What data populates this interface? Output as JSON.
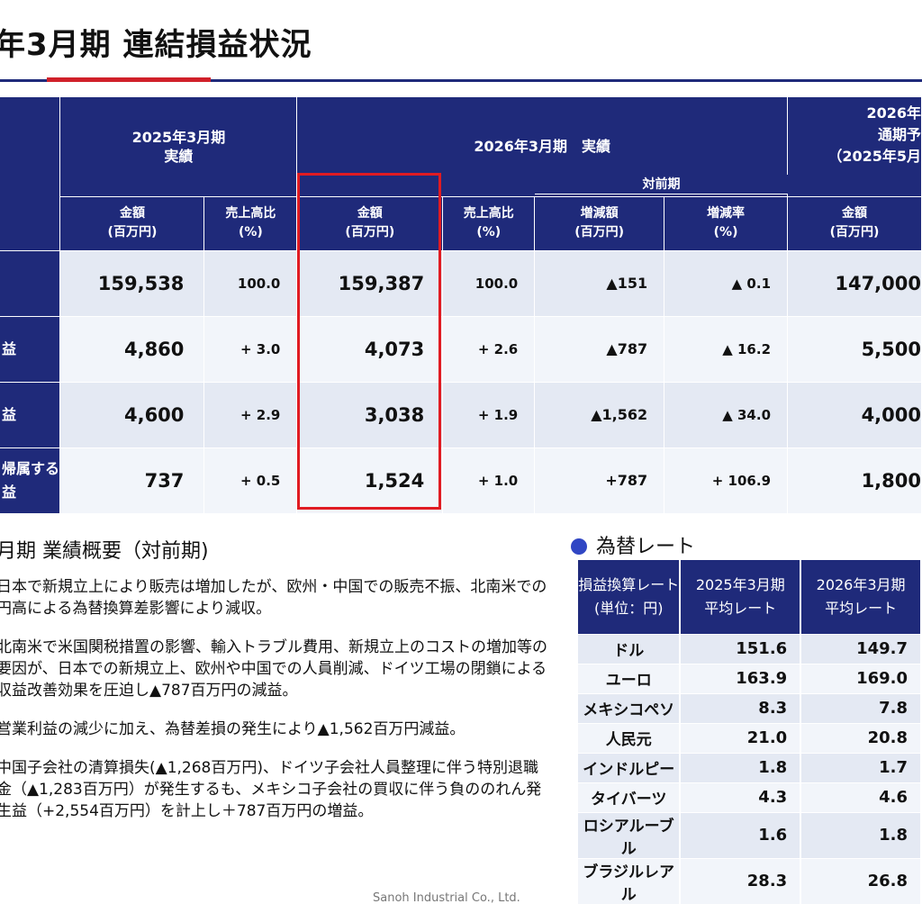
{
  "page": {
    "title": "年3月期 連結損益状況",
    "footer": "Sanoh Industrial Co., Ltd."
  },
  "colors": {
    "header_navy": "#1f2a7a",
    "accent_red": "#e01b22",
    "row_light": "#f2f5fa",
    "row_mid": "#e4e9f3"
  },
  "main_table": {
    "group_2025": [
      "2025年3月期",
      "実績"
    ],
    "group_2026": "2026年3月期　実績",
    "group_forecast": [
      "2026年",
      "通期予",
      "（2025年5月"
    ],
    "yoy_label": "対前期",
    "col_amount": [
      "金額",
      "(百万円)"
    ],
    "col_ratio": [
      "売上高比",
      "(%)"
    ],
    "col_change": [
      "増減額",
      "(百万円)"
    ],
    "col_rate": [
      "増減率",
      "(%)"
    ],
    "rows": [
      {
        "label": "",
        "a2025": "159,538",
        "r2025": "100.0",
        "a2026": "159,387",
        "r2026": "100.0",
        "chg": "▲151",
        "rate": "▲ 0.1",
        "fc": "147,000"
      },
      {
        "label": "益",
        "a2025": "4,860",
        "r2025": "+ 3.0",
        "a2026": "4,073",
        "r2026": "+ 2.6",
        "chg": "▲787",
        "rate": "▲ 16.2",
        "fc": "5,500"
      },
      {
        "label": "益",
        "a2025": "4,600",
        "r2025": "+ 2.9",
        "a2026": "3,038",
        "r2026": "+ 1.9",
        "chg": "▲1,562",
        "rate": "▲ 34.0",
        "fc": "4,000"
      },
      {
        "label": "帰属する",
        "label2": "益",
        "a2025": "737",
        "r2025": "+ 0.5",
        "a2026": "1,524",
        "r2026": "+ 1.0",
        "chg": "+787",
        "rate": "+ 106.9",
        "fc": "1,800"
      }
    ]
  },
  "summary": {
    "title": "月期 業績概要（対前期)",
    "paragraphs": [
      "日本で新規立上により販売は増加したが、欧州・中国での販売不振、北南米での円高による為替換算差影響により減収。",
      "北南米で米国関税措置の影響、輸入トラブル費用、新規立上のコストの増加等の要因が、日本での新規立上、欧州や中国での人員削減、ドイツ工場の閉鎖による収益改善効果を圧迫し▲787百万円の減益。",
      "営業利益の減少に加え、為替差損の発生により▲1,562百万円減益。",
      "中国子会社の清算損失(▲1,268百万円)、ドイツ子会社人員整理に伴う特別退職金（▲1,283百万円）が発生するも、メキシコ子会社の買収に伴う負ののれん発生益（+2,554百万円）を計上し＋787百万円の増益。"
    ]
  },
  "fx": {
    "title": "為替レート",
    "head": {
      "c0": [
        "損益換算レート",
        "(単位：円)"
      ],
      "c1": [
        "2025年3月期",
        "平均レート"
      ],
      "c2": [
        "2026年3月期",
        "平均レート"
      ]
    },
    "rows": [
      {
        "name": "ドル",
        "v2025": "151.6",
        "v2026": "149.7"
      },
      {
        "name": "ユーロ",
        "v2025": "163.9",
        "v2026": "169.0"
      },
      {
        "name": "メキシコペソ",
        "v2025": "8.3",
        "v2026": "7.8"
      },
      {
        "name": "人民元",
        "v2025": "21.0",
        "v2026": "20.8"
      },
      {
        "name": "インドルピー",
        "v2025": "1.8",
        "v2026": "1.7"
      },
      {
        "name": "タイバーツ",
        "v2025": "4.3",
        "v2026": "4.6"
      },
      {
        "name": "ロシアルーブル",
        "v2025": "1.6",
        "v2026": "1.8"
      },
      {
        "name": "ブラジルレアル",
        "v2025": "28.3",
        "v2026": "26.8"
      }
    ]
  }
}
